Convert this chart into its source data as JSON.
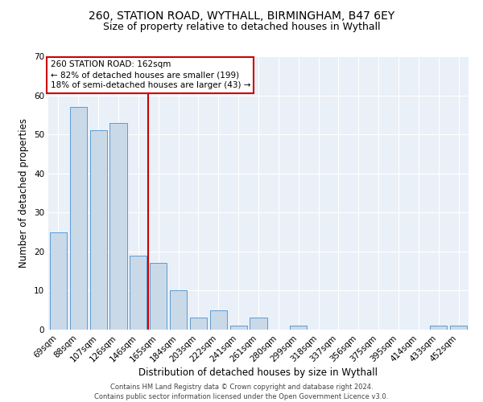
{
  "title_line1": "260, STATION ROAD, WYTHALL, BIRMINGHAM, B47 6EY",
  "title_line2": "Size of property relative to detached houses in Wythall",
  "xlabel": "Distribution of detached houses by size in Wythall",
  "ylabel": "Number of detached properties",
  "categories": [
    "69sqm",
    "88sqm",
    "107sqm",
    "126sqm",
    "146sqm",
    "165sqm",
    "184sqm",
    "203sqm",
    "222sqm",
    "241sqm",
    "261sqm",
    "280sqm",
    "299sqm",
    "318sqm",
    "337sqm",
    "356sqm",
    "375sqm",
    "395sqm",
    "414sqm",
    "433sqm",
    "452sqm"
  ],
  "values": [
    25,
    57,
    51,
    53,
    19,
    17,
    10,
    3,
    5,
    1,
    3,
    0,
    1,
    0,
    0,
    0,
    0,
    0,
    0,
    1,
    1
  ],
  "bar_color": "#c9d9e8",
  "bar_edge_color": "#5b9bd5",
  "vline_x": 4.5,
  "vline_color": "#cc0000",
  "annotation_text": "260 STATION ROAD: 162sqm\n← 82% of detached houses are smaller (199)\n18% of semi-detached houses are larger (43) →",
  "annotation_box_color": "#ffffff",
  "annotation_box_edge": "#cc0000",
  "ylim": [
    0,
    70
  ],
  "yticks": [
    0,
    10,
    20,
    30,
    40,
    50,
    60,
    70
  ],
  "bg_color": "#eaf0f8",
  "footer": "Contains HM Land Registry data © Crown copyright and database right 2024.\nContains public sector information licensed under the Open Government Licence v3.0.",
  "title_fontsize": 10,
  "subtitle_fontsize": 9,
  "axis_label_fontsize": 8.5,
  "tick_fontsize": 7.5,
  "annotation_fontsize": 7.5,
  "footer_fontsize": 6
}
